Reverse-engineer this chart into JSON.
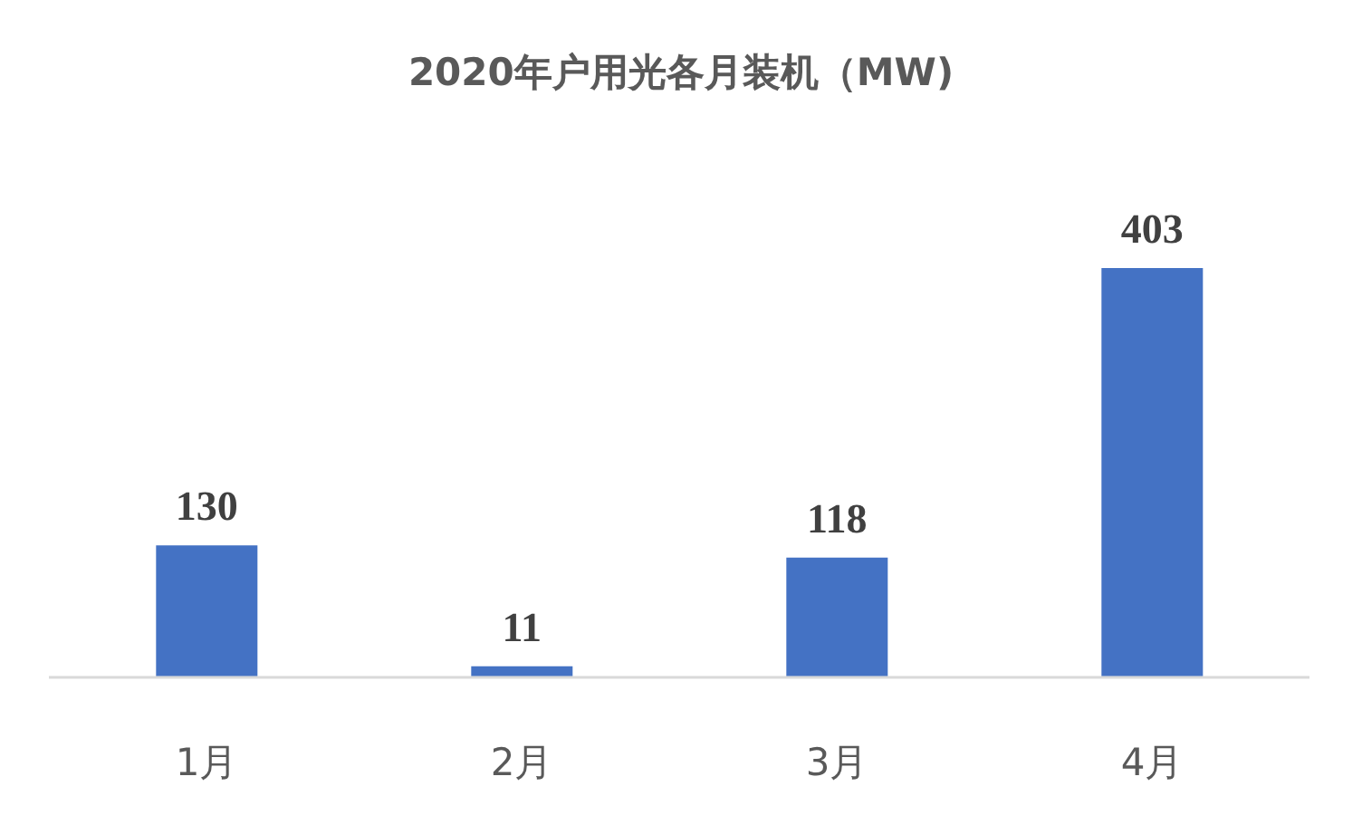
{
  "chart_data": {
    "type": "bar",
    "title": "2020年户用光各月装机（MW)",
    "categories": [
      "1月",
      "2月",
      "3月",
      "4月"
    ],
    "values": [
      130,
      11,
      118,
      403
    ],
    "color": "#4472c4",
    "data_labels": true
  }
}
